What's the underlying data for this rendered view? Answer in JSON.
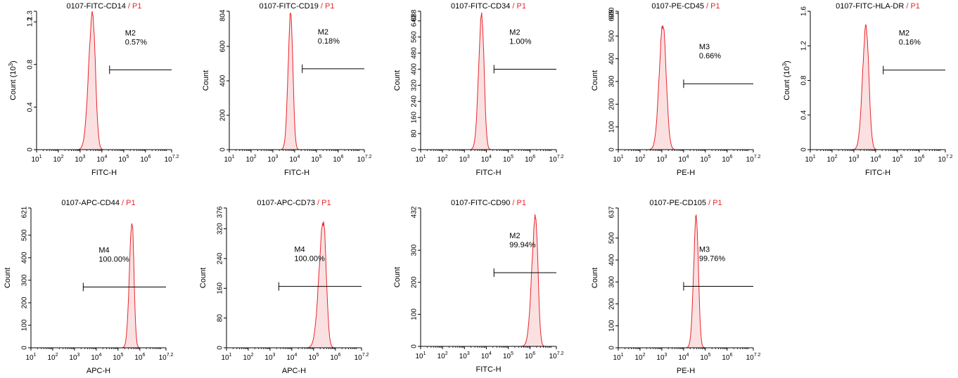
{
  "colors": {
    "curve": "#e8262c",
    "fill": "#fbe0e1",
    "axis": "#000000",
    "p1": "#e8262c"
  },
  "x_ticks": [
    "1",
    "2",
    "3",
    "4",
    "5",
    "6",
    "7.2"
  ],
  "chart_data": [
    {
      "type": "area",
      "title_main": "0107-FITC-CD14",
      "title_sep": " / ",
      "title_gate": "P1",
      "xlabel": "FITC-H",
      "ylabel": "Count (10",
      "ylabel_exp": "3",
      "ylabel_end": ")",
      "xlim": [
        1,
        7.2
      ],
      "ylim": [
        0,
        1.3
      ],
      "yticks": [
        0,
        0.4,
        0.8,
        1.2
      ],
      "ytick_labels": [
        "0",
        "0.4",
        "0.8",
        "1.2"
      ],
      "ymax_label": "1.3",
      "peak": {
        "center": 3.57,
        "height": 1.28,
        "sigma_left": 0.18,
        "sigma_right": 0.13
      },
      "marker": {
        "name": "M2",
        "percent": "0.57%",
        "x_start": 4.35,
        "x_end": 7.2,
        "y": 0.75
      }
    },
    {
      "type": "area",
      "title_main": "0107-FITC-CD19",
      "title_sep": " / ",
      "title_gate": "P1",
      "xlabel": "FITC-H",
      "ylabel": "Count",
      "ylabel_exp": "",
      "ylabel_end": "",
      "xlim": [
        1,
        7.2
      ],
      "ylim": [
        0,
        804
      ],
      "yticks": [
        0,
        200,
        400,
        600
      ],
      "ytick_labels": [
        "0",
        "200",
        "400",
        "600"
      ],
      "ymax_label": "804",
      "peak": {
        "center": 3.82,
        "height": 790,
        "sigma_left": 0.12,
        "sigma_right": 0.1
      },
      "marker": {
        "name": "M2",
        "percent": "0.18%",
        "x_start": 4.35,
        "x_end": 7.2,
        "y": 470
      }
    },
    {
      "type": "area",
      "title_main": "0107-FITC-CD34",
      "title_sep": " / ",
      "title_gate": "P1",
      "xlabel": "FITC-H",
      "ylabel": "Count",
      "ylabel_exp": "",
      "ylabel_end": "",
      "xlim": [
        1,
        7.2
      ],
      "ylim": [
        0,
        688
      ],
      "yticks": [
        0,
        80,
        160,
        240,
        320,
        400,
        480,
        560,
        640
      ],
      "ytick_labels": [
        "0",
        "80",
        "160",
        "240",
        "320",
        "400",
        "480",
        "560",
        "640"
      ],
      "ymax_label": "688",
      "peak": {
        "center": 3.79,
        "height": 670,
        "sigma_left": 0.14,
        "sigma_right": 0.11
      },
      "marker": {
        "name": "M2",
        "percent": "1.00%",
        "x_start": 4.35,
        "x_end": 7.2,
        "y": 400
      }
    },
    {
      "type": "area",
      "title_main": "0107-PE-CD45",
      "title_sep": " / ",
      "title_gate": "P1",
      "xlabel": "PE-H",
      "ylabel": "Count",
      "ylabel_exp": "",
      "ylabel_end": "",
      "xlim": [
        1,
        7.2
      ],
      "ylim": [
        0,
        609
      ],
      "yticks": [
        0,
        100,
        200,
        300,
        400,
        500,
        600
      ],
      "ytick_labels": [
        "0",
        "100",
        "200",
        "300",
        "400",
        "500",
        "600"
      ],
      "ymax_label": "609",
      "peak": {
        "center": 3.05,
        "height": 550,
        "sigma_left": 0.17,
        "sigma_right": 0.15
      },
      "marker": {
        "name": "M3",
        "percent": "0.66%",
        "x_start": 4.0,
        "x_end": 7.2,
        "y": 290
      }
    },
    {
      "type": "area",
      "title_main": "0107-FITC-HLA-DR",
      "title_sep": " / ",
      "title_gate": "P1",
      "xlabel": "FITC-H",
      "ylabel": "Count (10",
      "ylabel_exp": "3",
      "ylabel_end": ")",
      "xlim": [
        1,
        7.2
      ],
      "ylim": [
        0,
        1.6
      ],
      "yticks": [
        0,
        0.4,
        0.8,
        1.2,
        1.6
      ],
      "ytick_labels": [
        "0",
        "0.4",
        "0.8",
        "1.2",
        "1.6"
      ],
      "ymax_label": "",
      "peak": {
        "center": 3.56,
        "height": 1.43,
        "sigma_left": 0.16,
        "sigma_right": 0.13
      },
      "marker": {
        "name": "M2",
        "percent": "0.16%",
        "x_start": 4.35,
        "x_end": 7.2,
        "y": 0.92
      }
    },
    {
      "type": "area",
      "title_main": "0107-APC-CD44",
      "title_sep": " / ",
      "title_gate": "P1",
      "xlabel": "APC-H",
      "ylabel": "Count",
      "ylabel_exp": "",
      "ylabel_end": "",
      "xlim": [
        1,
        7.2
      ],
      "ylim": [
        0,
        621
      ],
      "yticks": [
        0,
        100,
        200,
        300,
        400,
        500
      ],
      "ytick_labels": [
        "0",
        "100",
        "200",
        "300",
        "400",
        "500"
      ],
      "ymax_label": "621",
      "peak": {
        "center": 5.64,
        "height": 560,
        "sigma_left": 0.12,
        "sigma_right": 0.09
      },
      "marker": {
        "name": "M4",
        "percent": "100.00%",
        "x_start": 3.4,
        "x_end": 7.2,
        "y": 270
      }
    },
    {
      "type": "area",
      "title_main": "0107-APC-CD73",
      "title_sep": " / ",
      "title_gate": "P1",
      "xlabel": "APC-H",
      "ylabel": "Count",
      "ylabel_exp": "",
      "ylabel_end": "",
      "xlim": [
        1,
        7.2
      ],
      "ylim": [
        0,
        376
      ],
      "yticks": [
        0,
        80,
        160,
        240,
        320
      ],
      "ytick_labels": [
        "0",
        "80",
        "160",
        "240",
        "320"
      ],
      "ymax_label": "376",
      "peak": {
        "center": 5.45,
        "height": 340,
        "sigma_left": 0.2,
        "sigma_right": 0.13
      },
      "marker": {
        "name": "M4",
        "percent": "100.00%",
        "x_start": 3.4,
        "x_end": 7.2,
        "y": 165
      }
    },
    {
      "type": "area",
      "title_main": "0107-FITC-CD90",
      "title_sep": " / ",
      "title_gate": "P1",
      "xlabel": "FITC-H",
      "ylabel": "Count",
      "ylabel_exp": "",
      "ylabel_end": "",
      "xlim": [
        1,
        7.2
      ],
      "ylim": [
        0,
        432
      ],
      "yticks": [
        0,
        100,
        200,
        300
      ],
      "ytick_labels": [
        "0",
        "100",
        "200",
        "300"
      ],
      "ymax_label": "432",
      "peak": {
        "center": 6.25,
        "height": 405,
        "sigma_left": 0.17,
        "sigma_right": 0.11
      },
      "marker": {
        "name": "M2",
        "percent": "99.94%",
        "x_start": 4.35,
        "x_end": 7.2,
        "y": 230
      }
    },
    {
      "type": "area",
      "title_main": "0107-PE-CD105",
      "title_sep": " / ",
      "title_gate": "P1",
      "xlabel": "PE-H",
      "ylabel": "Count",
      "ylabel_exp": "",
      "ylabel_end": "",
      "xlim": [
        1,
        7.2
      ],
      "ylim": [
        0,
        637
      ],
      "yticks": [
        0,
        100,
        200,
        300,
        400,
        500
      ],
      "ytick_labels": [
        "0",
        "100",
        "200",
        "300",
        "400",
        "500"
      ],
      "ymax_label": "637",
      "peak": {
        "center": 4.58,
        "height": 600,
        "sigma_left": 0.12,
        "sigma_right": 0.1
      },
      "marker": {
        "name": "M3",
        "percent": "99.76%",
        "x_start": 4.0,
        "x_end": 7.2,
        "y": 280
      }
    }
  ]
}
